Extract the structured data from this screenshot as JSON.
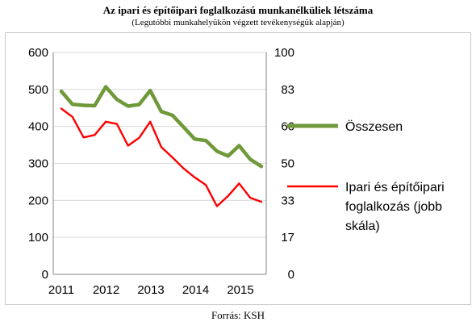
{
  "chart_data": {
    "type": "line",
    "title": "Az ipari  és  építőipari  foglalkozású  munkanélküliek  létszáma",
    "subtitle": "(Legutóbbi munkahelyükön végzett tevékenységük alapján)",
    "x_ticks": [
      "2011",
      "2012",
      "2013",
      "2014",
      "2015"
    ],
    "ylim_left": [
      0,
      600
    ],
    "yticks_left": [
      "0",
      "100",
      "200",
      "300",
      "400",
      "500",
      "600"
    ],
    "ylim_right": [
      0,
      100
    ],
    "yticks_right": [
      "0",
      "17",
      "33",
      "50",
      "66",
      "83",
      "100"
    ],
    "gridlines": true,
    "legend_position": "right",
    "series": [
      {
        "name": "Összesen",
        "axis": "left",
        "color": "#70993a",
        "values": [
          495,
          460,
          457,
          456,
          507,
          473,
          455,
          459,
          497,
          440,
          430,
          398,
          366,
          362,
          333,
          320,
          348,
          311,
          292
        ]
      },
      {
        "name": "Ipari és építőipari foglalkozás  (jobb skála)",
        "axis": "right",
        "color": "#ff0000",
        "values": [
          74.7,
          71.0,
          61.7,
          62.8,
          68.8,
          67.8,
          58.0,
          61.5,
          68.8,
          57.3,
          52.7,
          47.7,
          43.7,
          40.3,
          30.7,
          35.3,
          41.0,
          34.5,
          32.7
        ]
      }
    ],
    "legend_lines": [
      [
        "Összesen"
      ],
      [
        "Ipari és építőipari",
        "foglalkozás  (jobb",
        "skála)"
      ]
    ]
  },
  "source": "Forrás: KSH"
}
